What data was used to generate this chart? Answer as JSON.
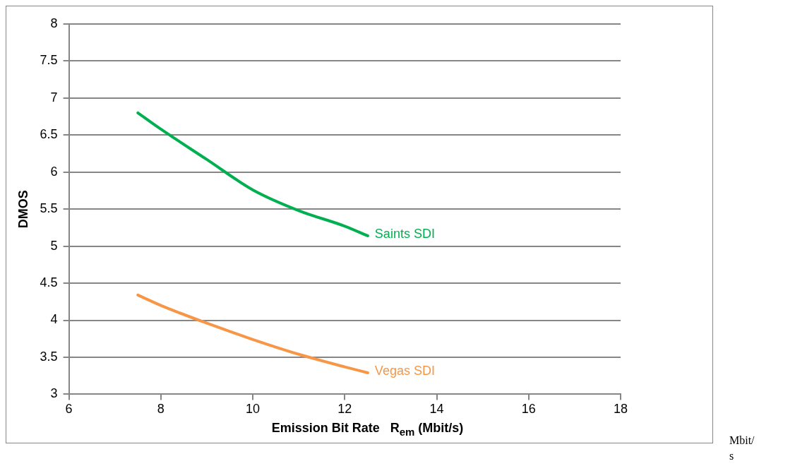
{
  "chart_data": {
    "type": "line",
    "xlabel": "Emission Bit Rate   R$_{em}$ (Mbit/s)",
    "ylabel": "DMOS",
    "xlim": [
      6,
      18
    ],
    "xticks": [
      6,
      8,
      10,
      12,
      14,
      16,
      18
    ],
    "ylim": [
      3,
      8
    ],
    "yticks": [
      3,
      3.5,
      4,
      4.5,
      5,
      5.5,
      6,
      6.5,
      7,
      7.5,
      8
    ],
    "grid": "y",
    "legend": false,
    "marker": "none",
    "line_style": "solid",
    "series": [
      {
        "name": "Saints SDI",
        "color": "#00b050",
        "x": [
          7.5,
          8,
          9,
          10,
          11,
          12,
          12.5
        ],
        "values": [
          6.8,
          6.58,
          6.17,
          5.76,
          5.48,
          5.27,
          5.14
        ]
      },
      {
        "name": "Vegas SDI",
        "color": "#f79646",
        "x": [
          7.5,
          8,
          9,
          10,
          11,
          12,
          12.5
        ],
        "values": [
          4.34,
          4.2,
          3.96,
          3.74,
          3.54,
          3.37,
          3.29
        ]
      }
    ],
    "annotations": [
      "Mbit/\ns"
    ]
  }
}
